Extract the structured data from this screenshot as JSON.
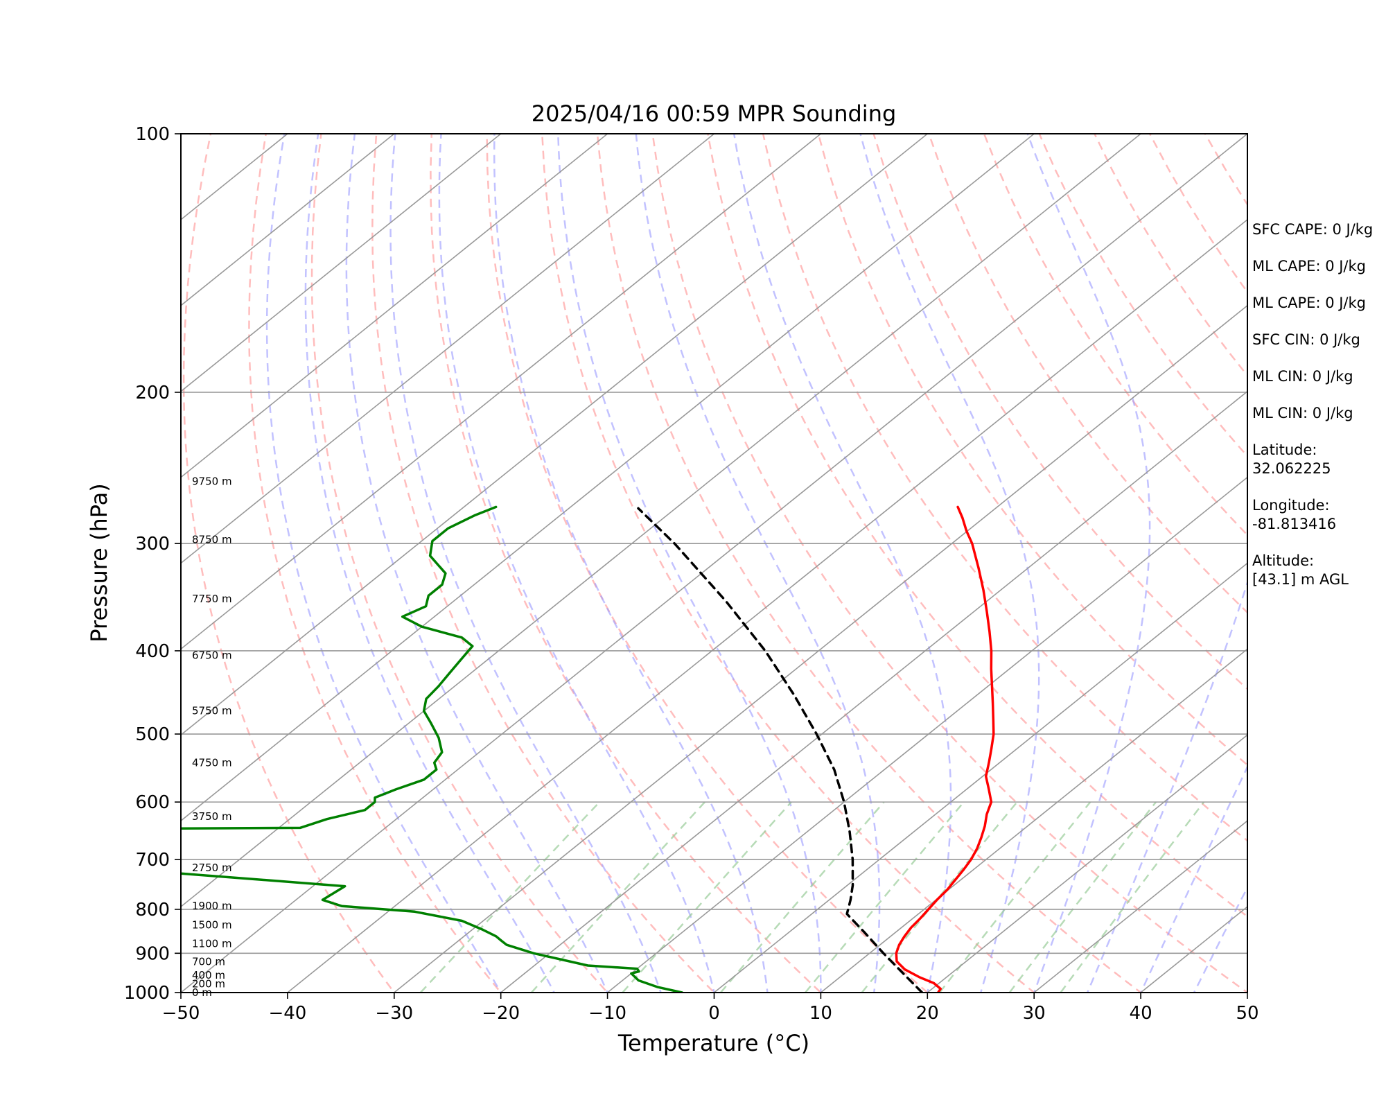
{
  "chart_data": {
    "type": "line",
    "title": "2025/04/16 00:59 MPR Sounding",
    "xlabel": "Temperature (°C)",
    "ylabel": "Pressure (hPa)",
    "xlim": [
      -50,
      50
    ],
    "ylim": [
      1000,
      100
    ],
    "y_scale": "log",
    "skew": true,
    "grid": true,
    "x_ticks": [
      "−50",
      "−40",
      "−30",
      "−20",
      "−10",
      "0",
      "10",
      "20",
      "30",
      "40",
      "50"
    ],
    "y_ticks": [
      "1000",
      "900",
      "800",
      "700",
      "600",
      "500",
      "400",
      "300",
      "200",
      "100"
    ],
    "colors": {
      "temperature": "#ff0000",
      "dewpoint": "#008000",
      "parcel": "#000000",
      "dry_adiabats": "#ff9999",
      "moist_adiabats": "#9999ff",
      "mixing_ratio": "#99cc99",
      "isotherms": "#999999"
    },
    "series": [
      {
        "line": "temperature",
        "points": [
          [
            1000,
            21.0
          ],
          [
            990,
            20.8
          ],
          [
            975,
            19.5
          ],
          [
            960,
            17.5
          ],
          [
            940,
            15.2
          ],
          [
            920,
            13.5
          ],
          [
            900,
            12.5
          ],
          [
            880,
            11.8
          ],
          [
            860,
            11.3
          ],
          [
            840,
            10.9
          ],
          [
            820,
            10.7
          ],
          [
            800,
            10.4
          ],
          [
            780,
            10.1
          ],
          [
            760,
            9.9
          ],
          [
            740,
            9.5
          ],
          [
            720,
            9.1
          ],
          [
            700,
            8.6
          ],
          [
            680,
            7.9
          ],
          [
            660,
            7.0
          ],
          [
            640,
            6.0
          ],
          [
            620,
            4.8
          ],
          [
            600,
            3.8
          ],
          [
            580,
            2.1
          ],
          [
            560,
            0.3
          ],
          [
            540,
            -1.0
          ],
          [
            520,
            -2.4
          ],
          [
            500,
            -3.9
          ],
          [
            480,
            -5.7
          ],
          [
            460,
            -7.6
          ],
          [
            440,
            -9.6
          ],
          [
            420,
            -11.7
          ],
          [
            400,
            -13.8
          ],
          [
            380,
            -16.2
          ],
          [
            360,
            -18.8
          ],
          [
            340,
            -21.6
          ],
          [
            320,
            -24.7
          ],
          [
            300,
            -28.1
          ],
          [
            290,
            -30.1
          ],
          [
            280,
            -32.0
          ],
          [
            272,
            -33.7
          ]
        ]
      },
      {
        "line": "dewpoint",
        "points": [
          [
            1000,
            -3.0
          ],
          [
            985,
            -6.0
          ],
          [
            968,
            -8.5
          ],
          [
            950,
            -10.0
          ],
          [
            945,
            -9.5
          ],
          [
            938,
            -10.0
          ],
          [
            930,
            -15.0
          ],
          [
            900,
            -21.5
          ],
          [
            880,
            -25.0
          ],
          [
            870,
            -26.0
          ],
          [
            860,
            -27.0
          ],
          [
            845,
            -29.0
          ],
          [
            825,
            -32.0
          ],
          [
            805,
            -37.5
          ],
          [
            793,
            -45.0
          ],
          [
            780,
            -47.5
          ],
          [
            752,
            -47.0
          ],
          [
            725,
            -65.0
          ],
          [
            705,
            -75.0
          ],
          [
            701,
            -75.2
          ],
          [
            685,
            -75.0
          ],
          [
            684,
            -80.0
          ],
          [
            645,
            -80.0
          ],
          [
            643,
            -58.0
          ],
          [
            628,
            -56.5
          ],
          [
            613,
            -54.0
          ],
          [
            600,
            -54.0
          ],
          [
            593,
            -54.5
          ],
          [
            580,
            -53.5
          ],
          [
            565,
            -52.0
          ],
          [
            550,
            -52.0
          ],
          [
            540,
            -53.0
          ],
          [
            525,
            -53.5
          ],
          [
            505,
            -55.5
          ],
          [
            485,
            -58.0
          ],
          [
            470,
            -60.0
          ],
          [
            455,
            -61.2
          ],
          [
            440,
            -61.5
          ],
          [
            425,
            -62.0
          ],
          [
            410,
            -62.5
          ],
          [
            395,
            -63.0
          ],
          [
            386,
            -65.0
          ],
          [
            375,
            -70.0
          ],
          [
            365,
            -73.0
          ],
          [
            355,
            -72.0
          ],
          [
            345,
            -73.0
          ],
          [
            335,
            -73.0
          ],
          [
            325,
            -74.0
          ],
          [
            310,
            -77.5
          ],
          [
            298,
            -79.0
          ],
          [
            288,
            -79.0
          ],
          [
            278,
            -78.0
          ],
          [
            272,
            -77.0
          ]
        ]
      },
      {
        "line": "parcel",
        "points": [
          [
            1000,
            19.5
          ],
          [
            950,
            15.5
          ],
          [
            900,
            11.3
          ],
          [
            850,
            7.0
          ],
          [
            810,
            3.3
          ],
          [
            780,
            2.0
          ],
          [
            750,
            0.5
          ],
          [
            700,
            -2.5
          ],
          [
            650,
            -6.0
          ],
          [
            600,
            -10.0
          ],
          [
            550,
            -14.7
          ],
          [
            500,
            -20.5
          ],
          [
            450,
            -27.2
          ],
          [
            400,
            -35.0
          ],
          [
            350,
            -44.5
          ],
          [
            300,
            -56.0
          ],
          [
            273,
            -63.5
          ]
        ]
      }
    ],
    "height_labels": [
      {
        "p": 1000,
        "text": "0 m"
      },
      {
        "p": 977,
        "text": "200 m"
      },
      {
        "p": 955,
        "text": "400 m"
      },
      {
        "p": 921,
        "text": "700 m"
      },
      {
        "p": 877,
        "text": "1100 m"
      },
      {
        "p": 834,
        "text": "1500 m"
      },
      {
        "p": 793,
        "text": "1900 m"
      },
      {
        "p": 716,
        "text": "2750 m"
      },
      {
        "p": 624,
        "text": "3750 m"
      },
      {
        "p": 540,
        "text": "4750 m"
      },
      {
        "p": 470,
        "text": "5750 m"
      },
      {
        "p": 405,
        "text": "6750 m"
      },
      {
        "p": 348,
        "text": "7750 m"
      },
      {
        "p": 297,
        "text": "8750 m"
      },
      {
        "p": 254,
        "text": "9750 m"
      }
    ]
  },
  "stats": [
    "SFC CAPE: 0 J/kg",
    "ML CAPE: 0 J/kg",
    "ML CAPE: 0 J/kg",
    "SFC CIN: 0 J/kg",
    "ML CIN: 0 J/kg",
    "ML CIN: 0 J/kg",
    "Latitude:\n32.062225",
    "Longitude:\n-81.813416",
    "Altitude:\n[43.1] m AGL"
  ]
}
